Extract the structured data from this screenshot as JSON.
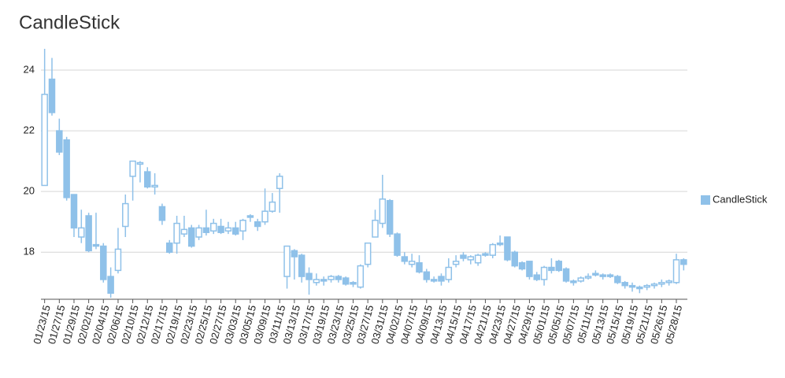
{
  "chart_data": {
    "type": "candlestick",
    "title": "CandleStick",
    "categories": [
      "01/23/15",
      null,
      "01/27/15",
      null,
      "01/29/15",
      null,
      "02/02/15",
      null,
      "02/04/15",
      null,
      "02/06/15",
      null,
      "02/10/15",
      null,
      "02/12/15",
      null,
      "02/17/15",
      null,
      "02/19/15",
      null,
      "02/23/15",
      null,
      "02/25/15",
      null,
      "02/27/15",
      null,
      "03/03/15",
      null,
      "03/05/15",
      null,
      "03/09/15",
      null,
      "03/11/15",
      null,
      "03/13/15",
      null,
      "03/17/15",
      null,
      "03/19/15",
      null,
      "03/23/15",
      null,
      "03/25/15",
      null,
      "03/27/15",
      null,
      "03/31/15",
      null,
      "04/02/15",
      null,
      "04/07/15",
      null,
      "04/09/15",
      null,
      "04/13/15",
      null,
      "04/15/15",
      null,
      "04/17/15",
      null,
      "04/21/15",
      null,
      "04/23/15",
      null,
      "04/27/15",
      null,
      "04/29/15",
      null,
      "05/01/15",
      null,
      "05/05/15",
      null,
      "05/07/15",
      null,
      "05/11/15",
      null,
      "05/13/15",
      null,
      "05/15/15",
      null,
      "05/19/15",
      null,
      "05/21/15",
      null,
      "05/26/15",
      null,
      "05/28/15",
      null
    ],
    "series": [
      {
        "name": "CandleStick",
        "color": "#8fc1e9",
        "open": [
          20.2,
          23.7,
          22.0,
          21.7,
          19.9,
          18.5,
          19.2,
          18.25,
          18.2,
          17.2,
          17.4,
          18.85,
          20.5,
          20.9,
          20.65,
          20.15,
          19.5,
          18.3,
          18.3,
          18.6,
          18.8,
          18.5,
          18.8,
          18.7,
          18.85,
          18.7,
          18.8,
          18.7,
          19.2,
          19.0,
          19.0,
          19.35,
          20.1,
          17.2,
          18.05,
          17.9,
          17.3,
          17.0,
          17.1,
          17.1,
          17.2,
          17.15,
          17.0,
          16.85,
          17.6,
          18.5,
          18.95,
          19.7,
          18.6,
          17.85,
          17.6,
          17.65,
          17.35,
          17.1,
          17.2,
          17.1,
          17.6,
          17.9,
          17.75,
          17.65,
          17.95,
          17.9,
          18.3,
          18.5,
          18.0,
          17.65,
          17.7,
          17.25,
          17.1,
          17.5,
          17.7,
          17.45,
          17.05,
          17.05,
          17.15,
          17.3,
          17.25,
          17.25,
          17.2,
          17.0,
          16.9,
          16.85,
          16.85,
          16.9,
          16.95,
          17.0,
          17.0,
          17.75
        ],
        "high": [
          24.7,
          24.4,
          22.4,
          21.8,
          19.9,
          19.4,
          19.3,
          19.3,
          18.3,
          17.5,
          18.8,
          19.9,
          21.0,
          21.0,
          20.8,
          20.6,
          19.6,
          18.4,
          19.2,
          19.2,
          18.9,
          18.9,
          19.4,
          19.1,
          19.1,
          19.0,
          19.0,
          19.1,
          19.25,
          19.1,
          20.1,
          19.95,
          20.6,
          18.2,
          18.1,
          17.95,
          17.5,
          17.3,
          17.2,
          17.25,
          17.25,
          17.2,
          17.05,
          17.6,
          18.3,
          19.4,
          20.55,
          19.75,
          18.65,
          18.0,
          17.95,
          17.9,
          17.45,
          17.2,
          17.3,
          17.8,
          17.9,
          18.0,
          17.9,
          17.95,
          18.0,
          18.3,
          18.55,
          18.5,
          18.05,
          17.7,
          17.7,
          17.35,
          17.55,
          17.8,
          17.75,
          17.5,
          17.1,
          17.2,
          17.3,
          17.4,
          17.3,
          17.3,
          17.25,
          17.05,
          17.0,
          16.9,
          16.95,
          17.0,
          17.1,
          17.1,
          17.95,
          17.8
        ],
        "low": [
          20.2,
          22.5,
          21.2,
          19.7,
          18.5,
          18.3,
          18.0,
          18.1,
          17.0,
          16.5,
          17.3,
          18.5,
          19.7,
          20.3,
          20.1,
          19.9,
          18.9,
          17.95,
          17.95,
          18.5,
          18.15,
          18.4,
          18.55,
          18.6,
          18.6,
          18.6,
          18.55,
          18.4,
          19.0,
          18.7,
          18.9,
          19.3,
          19.3,
          16.8,
          17.1,
          17.0,
          16.6,
          16.9,
          16.9,
          17.0,
          17.0,
          16.9,
          16.85,
          16.8,
          17.5,
          18.5,
          18.8,
          18.5,
          17.85,
          17.6,
          17.5,
          17.3,
          17.0,
          17.0,
          16.9,
          17.0,
          17.5,
          17.7,
          17.6,
          17.55,
          17.85,
          17.8,
          18.2,
          17.7,
          17.5,
          17.4,
          17.1,
          17.05,
          16.9,
          17.3,
          17.35,
          17.0,
          16.9,
          17.0,
          17.1,
          17.2,
          17.1,
          17.15,
          16.95,
          16.8,
          16.7,
          16.65,
          16.75,
          16.8,
          16.85,
          16.9,
          16.95,
          17.4
        ],
        "close": [
          23.2,
          22.6,
          21.3,
          19.8,
          18.8,
          18.8,
          18.05,
          18.2,
          17.1,
          16.65,
          18.1,
          19.6,
          21.0,
          20.95,
          20.15,
          20.2,
          19.05,
          18.0,
          18.95,
          18.75,
          18.2,
          18.8,
          18.65,
          18.95,
          18.65,
          18.8,
          18.6,
          19.05,
          19.15,
          18.85,
          19.35,
          19.65,
          20.5,
          18.2,
          17.85,
          17.2,
          17.1,
          17.1,
          17.05,
          17.2,
          17.1,
          16.95,
          16.95,
          17.55,
          18.3,
          19.05,
          19.75,
          18.6,
          17.9,
          17.7,
          17.7,
          17.35,
          17.1,
          17.05,
          17.05,
          17.5,
          17.7,
          17.8,
          17.85,
          17.9,
          17.9,
          18.25,
          18.25,
          17.75,
          17.55,
          17.45,
          17.2,
          17.1,
          17.5,
          17.4,
          17.4,
          17.05,
          17.0,
          17.15,
          17.2,
          17.25,
          17.2,
          17.2,
          17.0,
          16.9,
          16.85,
          16.8,
          16.9,
          16.95,
          17.0,
          17.05,
          17.75,
          17.6
        ]
      }
    ],
    "ylim": [
      16.45,
      24.7
    ],
    "yticks": [
      18,
      20,
      22,
      24
    ],
    "grid": true,
    "legend": "right"
  }
}
